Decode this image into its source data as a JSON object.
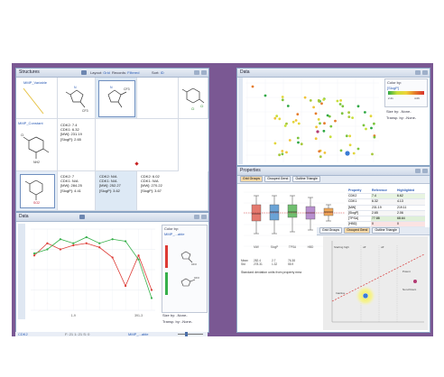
{
  "structures": {
    "title": "Structures",
    "layout_label": "Layout:",
    "layout_value": "Grid",
    "records_label": "Records:",
    "records_value": "Filtered",
    "sort_label": "Sort:",
    "sort_value": "ID",
    "side_label_1": "MMP_Variable",
    "side_label_2": "MMP_Constant",
    "compounds": [
      {
        "lines": [
          "CDK2: 7.4",
          "CDK1: 6.32",
          "[MW]: 231.19",
          "[SlogP]: 2.65"
        ]
      },
      {
        "lines": [
          "CDK2: 7",
          "CDK1: N/A",
          "[MW]: 284.25",
          "[SlogP]: 4.41"
        ]
      },
      {
        "lines": [
          "CDK2: N/A",
          "CDK1: N/A",
          "[MW]: 252.27",
          "[SlogP]: 3.62"
        ]
      },
      {
        "lines": [
          "CDK2: 6.02",
          "CDK1: N/A",
          "[MW]: 270.22",
          "[SlogP]: 3.67"
        ]
      }
    ]
  },
  "data_left": {
    "title": "Data",
    "color_by_label": "Color by:",
    "color_by_value": "MMP_...able",
    "size_by": "Size by: -None-",
    "transp_by": "Transp. by: -None-",
    "footer_left": "CDK2",
    "footer_values": "F: 21  1: 21  S: 0",
    "footer_right": "MMP_...able",
    "series": [
      {
        "name": "red",
        "color": "#dd3b35",
        "values": [
          2.7,
          3.3,
          3.0,
          3.2,
          3.3,
          3.1,
          2.6,
          1.2,
          2.7,
          1.0
        ]
      },
      {
        "name": "green",
        "color": "#37b04b",
        "values": [
          2.8,
          3.0,
          3.5,
          3.3,
          3.6,
          3.3,
          3.5,
          3.4,
          2.5,
          0.6
        ]
      }
    ],
    "x_tick_labels": [
      "1-9",
      "391-3"
    ]
  },
  "scatter": {
    "title": "Data",
    "color_by_label": "Color by:",
    "color_by_value": "[SlogP]",
    "legend_values": [
      "2.21",
      "4.06"
    ],
    "size_by": "Size by: -None-",
    "transp_by": "Transp. by: -None-"
  },
  "properties": {
    "title": "Properties",
    "tabs": [
      "Grid Groups",
      "Grouped Gend",
      "Outline Triangle"
    ],
    "box_x_labels": [
      "MW",
      "SlogP",
      "TPSA",
      "HBD"
    ],
    "stats_row1": [
      "Mean",
      "282.4",
      "2.7",
      "76.38"
    ],
    "stats_row2": [
      "Std",
      "278.31",
      "1.32",
      "55.9"
    ],
    "note": "Standard deviation units from property mea",
    "table_headers": [
      "Property",
      "Reference",
      "Highlighted"
    ],
    "table_rows": [
      [
        "CDK2",
        "7.4",
        "6.62"
      ],
      [
        "CDK1",
        "6.32",
        "4.13"
      ],
      [
        "[MW]",
        "231.19",
        "219.11"
      ],
      [
        "[SlogP]",
        "2.65",
        "2.06"
      ],
      [
        "[TPSA]",
        "77.88",
        "68.64"
      ],
      [
        "[HBD]",
        "0",
        "0"
      ],
      [
        "[HBA]",
        "4",
        "3"
      ]
    ],
    "lower_tabs": [
      "Grid Groups",
      "Grouped Gend",
      "Outline Triangle"
    ],
    "activity_labels": [
      "Starting high",
      "off",
      "off"
    ],
    "zone_labels": [
      "Inactive",
      "Active",
      "Potent",
      "Non-Potent"
    ]
  }
}
